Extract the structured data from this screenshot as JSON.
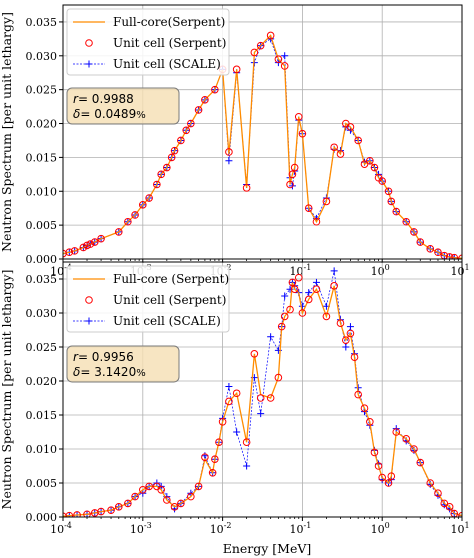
{
  "chart_data": [
    {
      "type": "line",
      "xscale": "log",
      "xlim": [
        0.0001,
        10
      ],
      "ylim": [
        0,
        0.0375
      ],
      "xticks": [
        "10",
        "10",
        "10",
        "10",
        "10",
        "10"
      ],
      "xtick_exponents": [
        "-4",
        "-3",
        "-2",
        "-1",
        "0",
        "1"
      ],
      "yticks": [
        "0.000",
        "0.005",
        "0.010",
        "0.015",
        "0.020",
        "0.025",
        "0.030",
        "0.035"
      ],
      "ytick_values": [
        0,
        0.005,
        0.01,
        0.015,
        0.02,
        0.025,
        0.03,
        0.035
      ],
      "ylabel": "Neutron Spectrum [per unit lethargy]",
      "grid": true,
      "legend_position": "top-left",
      "stats": {
        "r_label": "r",
        "r_value": "= 0.9988",
        "delta_label": "δ",
        "delta_value": "= 0.0489",
        "delta_unit": "%"
      },
      "x": [
        0.0001,
        0.00012,
        0.00014,
        0.00018,
        0.0002,
        0.00022,
        0.00025,
        0.0003,
        0.0005,
        0.00065,
        0.0008,
        0.001,
        0.0012,
        0.0015,
        0.0017,
        0.002,
        0.0023,
        0.0025,
        0.003,
        0.0035,
        0.004,
        0.005,
        0.006,
        0.008,
        0.01,
        0.012,
        0.015,
        0.02,
        0.025,
        0.03,
        0.04,
        0.05,
        0.06,
        0.07,
        0.075,
        0.08,
        0.09,
        0.1,
        0.12,
        0.15,
        0.2,
        0.25,
        0.3,
        0.35,
        0.4,
        0.5,
        0.6,
        0.7,
        0.8,
        0.9,
        1.0,
        1.2,
        1.3,
        1.5,
        2.0,
        2.5,
        3.0,
        4.0,
        5.0,
        6.0,
        7.0,
        8.0,
        10.0
      ],
      "series": [
        {
          "name": "Full-core(Serpent)",
          "color": "#ff8c00",
          "style": "solid",
          "values": [
            0.0008,
            0.001,
            0.0012,
            0.0017,
            0.002,
            0.0022,
            0.0025,
            0.003,
            0.004,
            0.0055,
            0.0065,
            0.008,
            0.009,
            0.011,
            0.0125,
            0.0135,
            0.015,
            0.016,
            0.0175,
            0.019,
            0.02,
            0.022,
            0.0235,
            0.025,
            0.028,
            0.0155,
            0.028,
            0.0105,
            0.0305,
            0.0315,
            0.033,
            0.0295,
            0.0285,
            0.011,
            0.0125,
            0.0135,
            0.021,
            0.0185,
            0.0075,
            0.0055,
            0.0085,
            0.0165,
            0.0155,
            0.02,
            0.0195,
            0.0175,
            0.014,
            0.0145,
            0.0135,
            0.012,
            0.0115,
            0.01,
            0.0085,
            0.007,
            0.0055,
            0.004,
            0.0025,
            0.0015,
            0.001,
            0.0005,
            0.0003,
            0.0002,
            0.0001
          ]
        },
        {
          "name": "Unit cell (Serpent)",
          "color": "#ff0000",
          "style": "marker-circle",
          "values": [
            0.0008,
            0.001,
            0.0012,
            0.0017,
            0.002,
            0.0022,
            0.0025,
            0.003,
            0.004,
            0.0055,
            0.0065,
            0.008,
            0.009,
            0.011,
            0.0125,
            0.0135,
            0.015,
            0.016,
            0.0175,
            0.019,
            0.02,
            0.022,
            0.0235,
            0.025,
            0.028,
            0.0158,
            0.028,
            0.0105,
            0.0305,
            0.0315,
            0.033,
            0.0295,
            0.0285,
            0.011,
            0.0125,
            0.0135,
            0.021,
            0.0185,
            0.0075,
            0.0055,
            0.0085,
            0.0165,
            0.0155,
            0.02,
            0.0195,
            0.0175,
            0.014,
            0.0145,
            0.0135,
            0.012,
            0.0115,
            0.01,
            0.0085,
            0.007,
            0.0055,
            0.004,
            0.0025,
            0.0015,
            0.001,
            0.0005,
            0.0003,
            0.0002,
            0.0001
          ]
        },
        {
          "name": "Unit cell (SCALE)",
          "color": "#0000ff",
          "style": "dashed-plus",
          "values": [
            0.0008,
            0.001,
            0.0012,
            0.0017,
            0.002,
            0.0022,
            0.0025,
            0.003,
            0.004,
            0.0055,
            0.0065,
            0.008,
            0.009,
            0.011,
            0.0125,
            0.0135,
            0.015,
            0.016,
            0.0175,
            0.019,
            0.02,
            0.022,
            0.0235,
            0.025,
            0.028,
            0.0145,
            0.0275,
            0.011,
            0.029,
            0.0315,
            0.0325,
            0.029,
            0.03,
            0.012,
            0.0108,
            0.013,
            0.0205,
            0.0185,
            0.0075,
            0.006,
            0.009,
            0.0162,
            0.016,
            0.0195,
            0.019,
            0.0175,
            0.0143,
            0.0145,
            0.0135,
            0.0125,
            0.0115,
            0.01,
            0.0085,
            0.007,
            0.0055,
            0.004,
            0.0025,
            0.0015,
            0.001,
            0.0005,
            0.0003,
            0.0002,
            0.0001
          ]
        }
      ]
    },
    {
      "type": "line",
      "xscale": "log",
      "xlim": [
        0.0001,
        10
      ],
      "ylim": [
        0,
        0.0375
      ],
      "xticks": [
        "10",
        "10",
        "10",
        "10",
        "10",
        "10"
      ],
      "xtick_exponents": [
        "-4",
        "-3",
        "-2",
        "-1",
        "0",
        "1"
      ],
      "yticks": [
        "0.000",
        "0.005",
        "0.010",
        "0.015",
        "0.020",
        "0.025",
        "0.030",
        "0.035"
      ],
      "ytick_values": [
        0,
        0.005,
        0.01,
        0.015,
        0.02,
        0.025,
        0.03,
        0.035
      ],
      "xlabel": "Energy [MeV]",
      "ylabel": "Neutron Spectrum [per unit lethargy]",
      "grid": true,
      "legend_position": "top-left",
      "stats": {
        "r_label": "r",
        "r_value": "= 0.9956",
        "delta_label": "δ",
        "delta_value": "= 3.1420",
        "delta_unit": "%"
      },
      "x": [
        0.0001,
        0.00012,
        0.00015,
        0.0002,
        0.00025,
        0.0003,
        0.0004,
        0.0005,
        0.00065,
        0.0008,
        0.001,
        0.0012,
        0.0015,
        0.0017,
        0.002,
        0.0025,
        0.003,
        0.004,
        0.005,
        0.006,
        0.0075,
        0.008,
        0.009,
        0.01,
        0.012,
        0.015,
        0.02,
        0.025,
        0.03,
        0.04,
        0.05,
        0.055,
        0.06,
        0.07,
        0.075,
        0.08,
        0.09,
        0.1,
        0.12,
        0.15,
        0.2,
        0.25,
        0.3,
        0.35,
        0.4,
        0.45,
        0.5,
        0.6,
        0.7,
        0.8,
        0.9,
        1.0,
        1.2,
        1.3,
        1.5,
        2.0,
        2.5,
        3.0,
        4.0,
        5.0,
        6.0,
        7.0,
        8.0,
        10.0
      ],
      "series": [
        {
          "name": "Full-core (Serpent)",
          "color": "#ff8c00",
          "style": "solid",
          "values": [
            0.0001,
            0.0002,
            0.0003,
            0.0004,
            0.0006,
            0.0008,
            0.001,
            0.0015,
            0.002,
            0.003,
            0.004,
            0.0045,
            0.0045,
            0.004,
            0.0025,
            0.0015,
            0.002,
            0.003,
            0.0045,
            0.0085,
            0.0065,
            0.0085,
            0.011,
            0.014,
            0.017,
            0.0182,
            0.011,
            0.024,
            0.018,
            0.0175,
            0.0205,
            0.028,
            0.0295,
            0.0305,
            0.0345,
            0.0335,
            0.033,
            0.03,
            0.032,
            0.0335,
            0.0295,
            0.034,
            0.0285,
            0.026,
            0.027,
            0.0235,
            0.018,
            0.016,
            0.014,
            0.0095,
            0.0075,
            0.0058,
            0.005,
            0.006,
            0.0125,
            0.0115,
            0.01,
            0.008,
            0.005,
            0.0035,
            0.002,
            0.0015,
            0.0005,
            0.0002
          ]
        },
        {
          "name": "Unit cell (Serpent)",
          "color": "#ff0000",
          "style": "marker-circle",
          "values": [
            0.0001,
            0.0002,
            0.0003,
            0.0004,
            0.0006,
            0.0008,
            0.001,
            0.0015,
            0.002,
            0.003,
            0.004,
            0.0045,
            0.0045,
            0.004,
            0.0025,
            0.0015,
            0.002,
            0.003,
            0.0045,
            0.0088,
            0.0065,
            0.0085,
            0.011,
            0.014,
            0.017,
            0.0182,
            0.011,
            0.024,
            0.0175,
            0.0175,
            0.0205,
            0.028,
            0.0295,
            0.0305,
            0.0345,
            0.0335,
            0.0352,
            0.03,
            0.032,
            0.0335,
            0.0295,
            0.034,
            0.0285,
            0.026,
            0.027,
            0.0235,
            0.018,
            0.016,
            0.014,
            0.0095,
            0.0075,
            0.0058,
            0.005,
            0.006,
            0.0125,
            0.0115,
            0.01,
            0.008,
            0.005,
            0.0035,
            0.002,
            0.0015,
            0.0005,
            0.0002
          ]
        },
        {
          "name": "Unit cell (SCALE)",
          "color": "#0000ff",
          "style": "dashed-plus",
          "values": [
            0.0001,
            0.0002,
            0.0003,
            0.0004,
            0.0006,
            0.0008,
            0.001,
            0.0015,
            0.002,
            0.003,
            0.0035,
            0.0045,
            0.005,
            0.0045,
            0.003,
            0.0012,
            0.002,
            0.0035,
            0.0045,
            0.009,
            0.0065,
            0.0085,
            0.011,
            0.0145,
            0.0192,
            0.0125,
            0.0075,
            0.0205,
            0.0152,
            0.0265,
            0.0245,
            0.028,
            0.0325,
            0.0335,
            0.0345,
            0.034,
            0.033,
            0.031,
            0.033,
            0.0345,
            0.031,
            0.0362,
            0.029,
            0.025,
            0.028,
            0.024,
            0.019,
            0.0155,
            0.0135,
            0.0098,
            0.0078,
            0.0055,
            0.005,
            0.0055,
            0.013,
            0.0112,
            0.0098,
            0.008,
            0.0048,
            0.0032,
            0.0018,
            0.0012,
            0.0005,
            0.0002
          ]
        }
      ]
    }
  ]
}
